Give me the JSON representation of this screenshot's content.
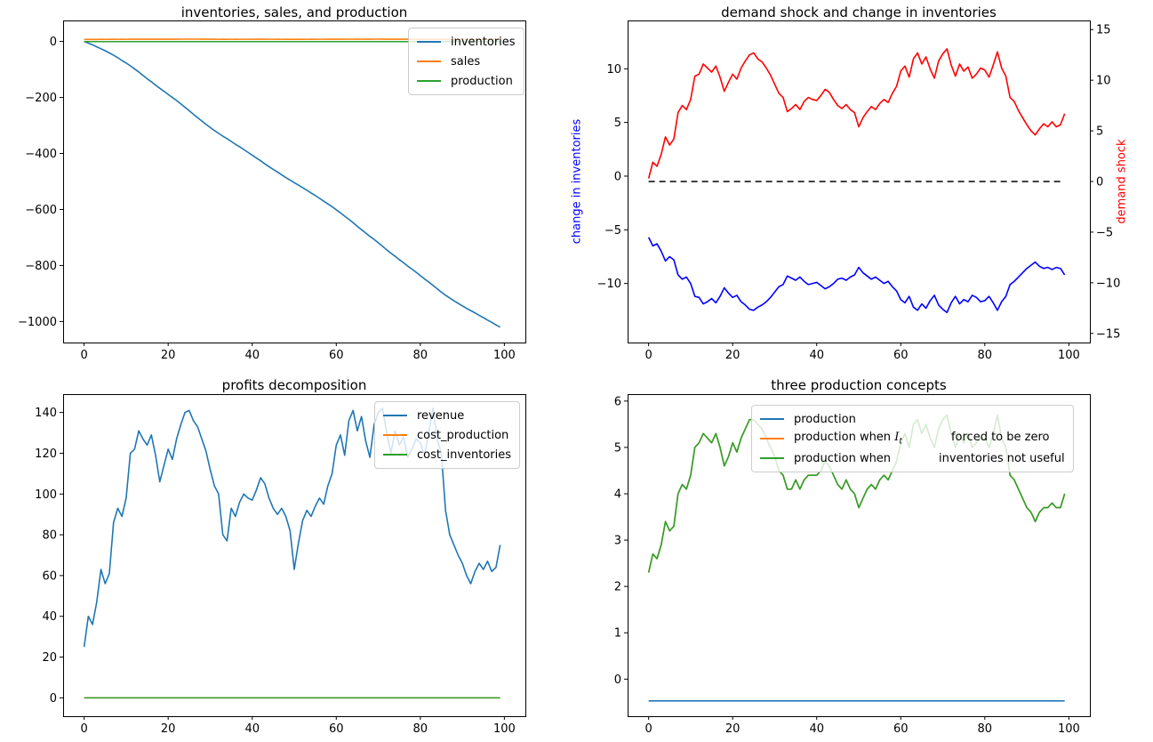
{
  "figure": {
    "background": "#ffffff"
  },
  "colors": {
    "mpl_blue": "#1f77b4",
    "mpl_orange": "#ff7f0e",
    "mpl_green": "#2ca02c",
    "pure_red": "#ff0000",
    "pure_blue": "#0000ff",
    "black": "#000000"
  },
  "chart_data": [
    {
      "id": "inventories_sales_production",
      "type": "line",
      "title": "inventories, sales, and production",
      "x_start": 0,
      "n_points": 100,
      "xlim": [
        -5,
        105
      ],
      "ylim": [
        -1075,
        75
      ],
      "grid": false,
      "xticks": {
        "values": [
          0,
          20,
          40,
          60,
          80,
          100
        ],
        "labels": [
          "0",
          "20",
          "40",
          "60",
          "80",
          "100"
        ]
      },
      "yticks": {
        "values": [
          0,
          -200,
          -400,
          -600,
          -800,
          -1000
        ],
        "labels": [
          "0",
          "−200",
          "−400",
          "−600",
          "−800",
          "−1000"
        ]
      },
      "legend": {
        "position": "upper right",
        "entries": [
          {
            "label": "inventories",
            "color": "#1f77b4"
          },
          {
            "label": "sales",
            "color": "#ff7f0e"
          },
          {
            "label": "production",
            "color": "#2ca02c"
          }
        ]
      },
      "series": [
        {
          "name": "inventories",
          "color": "#1f77b4",
          "values": [
            0,
            -6,
            -12,
            -19,
            -26,
            -33,
            -41,
            -49,
            -58,
            -68,
            -77,
            -87,
            -98,
            -109,
            -121,
            -133,
            -144,
            -156,
            -167,
            -178,
            -189,
            -200,
            -211,
            -223,
            -235,
            -247,
            -260,
            -272,
            -284,
            -296,
            -307,
            -318,
            -328,
            -338,
            -347,
            -357,
            -367,
            -376,
            -386,
            -396,
            -406,
            -416,
            -426,
            -437,
            -447,
            -457,
            -466,
            -476,
            -486,
            -495,
            -504,
            -513,
            -522,
            -531,
            -541,
            -550,
            -560,
            -570,
            -580,
            -590,
            -601,
            -612,
            -624,
            -635,
            -647,
            -660,
            -672,
            -684,
            -696,
            -707,
            -719,
            -731,
            -744,
            -756,
            -767,
            -779,
            -790,
            -802,
            -813,
            -824,
            -836,
            -848,
            -859,
            -871,
            -883,
            -895,
            -906,
            -916,
            -926,
            -935,
            -944,
            -953,
            -961,
            -969,
            -978,
            -986,
            -995,
            -1003,
            -1012,
            -1020
          ]
        },
        {
          "name": "sales",
          "color": "#ff7f0e",
          "values": [
            7.2,
            7.4,
            7.3,
            7.4,
            7.6,
            7.5,
            7.6,
            7.8,
            7.9,
            7.8,
            7.9,
            8.1,
            8.2,
            8.2,
            8.2,
            8.2,
            8.2,
            8.1,
            8.0,
            8.1,
            8.2,
            8.1,
            8.2,
            8.3,
            8.3,
            8.3,
            8.3,
            8.3,
            8.2,
            8.1,
            8.1,
            8.0,
            7.9,
            7.8,
            7.8,
            7.9,
            7.8,
            7.9,
            7.9,
            7.9,
            7.9,
            8.0,
            8.0,
            8.0,
            7.9,
            7.9,
            7.8,
            7.9,
            7.8,
            7.8,
            7.7,
            7.8,
            7.8,
            7.9,
            7.8,
            7.9,
            7.9,
            7.9,
            8.0,
            8.0,
            8.2,
            8.2,
            8.1,
            8.3,
            8.3,
            8.2,
            8.3,
            8.2,
            8.1,
            8.3,
            8.3,
            8.4,
            8.2,
            8.1,
            8.2,
            8.2,
            8.2,
            8.1,
            8.2,
            8.2,
            8.2,
            8.1,
            8.2,
            8.4,
            8.2,
            8.1,
            7.9,
            7.9,
            7.8,
            7.8,
            7.7,
            7.7,
            7.6,
            7.7,
            7.7,
            7.7,
            7.7,
            7.7,
            7.7,
            7.8
          ]
        },
        {
          "name": "production",
          "color": "#2ca02c",
          "constant": -0.47
        }
      ]
    },
    {
      "id": "demand_shock_and_change_in_inventories",
      "type": "line",
      "title": "demand shock and change in inventories",
      "x_start": 0,
      "n_points": 100,
      "xlim": [
        -5,
        105
      ],
      "ylim_left": [
        -15.5,
        14.5
      ],
      "ylim_right": [
        -15.9,
        15.9
      ],
      "grid": false,
      "ylabel_left": {
        "text": "change in inventories",
        "color": "#0000ff"
      },
      "ylabel_right": {
        "text": "demand shock",
        "color": "#ff0000"
      },
      "xticks": {
        "values": [
          0,
          20,
          40,
          60,
          80,
          100
        ],
        "labels": [
          "0",
          "20",
          "40",
          "60",
          "80",
          "100"
        ]
      },
      "yticks_left": {
        "values": [
          10,
          5,
          0,
          -5,
          -10
        ],
        "labels": [
          "10",
          "5",
          "0",
          "−5",
          "−10"
        ]
      },
      "yticks_right": {
        "values": [
          15,
          10,
          5,
          0,
          -5,
          -10,
          -15
        ],
        "labels": [
          "15",
          "10",
          "5",
          "0",
          "−5",
          "−10",
          "−15"
        ]
      },
      "legend": null,
      "series": [
        {
          "name": "zero line",
          "color": "#000000",
          "axis": "right",
          "dash": "7 5",
          "constant": 0
        },
        {
          "name": "demand shock",
          "color": "#ff0000",
          "axis": "right",
          "values": [
            0.3,
            1.9,
            1.5,
            2.7,
            4.4,
            3.6,
            4.2,
            6.8,
            7.5,
            7.1,
            8.1,
            10.4,
            10.6,
            11.6,
            11.2,
            10.8,
            11.4,
            10.3,
            8.9,
            9.8,
            10.6,
            10.1,
            11.2,
            11.9,
            12.5,
            12.7,
            12.1,
            11.8,
            11.2,
            10.5,
            9.6,
            8.7,
            8.3,
            6.9,
            7.2,
            7.6,
            7.1,
            7.9,
            8.3,
            8.1,
            8.0,
            8.5,
            9.1,
            8.8,
            8.1,
            7.5,
            7.2,
            7.6,
            7.1,
            6.8,
            5.4,
            6.3,
            6.9,
            7.4,
            7.1,
            7.7,
            8.1,
            7.8,
            8.7,
            9.4,
            10.9,
            11.4,
            10.3,
            12.1,
            12.7,
            11.6,
            12.3,
            11.1,
            10.2,
            11.9,
            12.6,
            13.1,
            11.5,
            10.4,
            11.6,
            10.9,
            11.3,
            10.2,
            10.6,
            11.2,
            11.0,
            10.3,
            11.5,
            12.8,
            11.2,
            10.4,
            8.3,
            7.9,
            7.0,
            6.3,
            5.6,
            5.0,
            4.6,
            5.2,
            5.7,
            5.4,
            5.9,
            5.4,
            5.6,
            6.7
          ]
        },
        {
          "name": "change in inventories",
          "color": "#0000ff",
          "axis": "left",
          "values": [
            -5.7,
            -6.5,
            -6.3,
            -7.0,
            -7.9,
            -7.5,
            -7.8,
            -9.2,
            -9.6,
            -9.4,
            -10.0,
            -11.2,
            -11.3,
            -11.9,
            -11.7,
            -11.4,
            -11.8,
            -11.2,
            -10.4,
            -10.9,
            -11.3,
            -11.1,
            -11.7,
            -12.0,
            -12.4,
            -12.5,
            -12.2,
            -12.0,
            -11.7,
            -11.3,
            -10.8,
            -10.3,
            -10.1,
            -9.3,
            -9.5,
            -9.7,
            -9.4,
            -9.8,
            -10.1,
            -10.0,
            -9.9,
            -10.2,
            -10.5,
            -10.3,
            -10.0,
            -9.6,
            -9.5,
            -9.7,
            -9.4,
            -9.2,
            -8.5,
            -9.0,
            -9.3,
            -9.6,
            -9.4,
            -9.7,
            -10.0,
            -9.8,
            -10.3,
            -10.7,
            -11.5,
            -11.8,
            -11.2,
            -12.2,
            -12.5,
            -11.9,
            -12.3,
            -11.6,
            -11.1,
            -12.0,
            -12.4,
            -12.7,
            -11.8,
            -11.2,
            -11.9,
            -11.5,
            -11.7,
            -11.1,
            -11.3,
            -11.7,
            -11.6,
            -11.2,
            -11.8,
            -12.5,
            -11.7,
            -11.2,
            -10.1,
            -9.8,
            -9.4,
            -9.0,
            -8.6,
            -8.3,
            -8.0,
            -8.4,
            -8.6,
            -8.5,
            -8.7,
            -8.5,
            -8.6,
            -9.2
          ]
        }
      ]
    },
    {
      "id": "profits_decomposition",
      "type": "line",
      "title": "profits decomposition",
      "x_start": 0,
      "n_points": 100,
      "xlim": [
        -5,
        105
      ],
      "ylim": [
        -9,
        149
      ],
      "grid": false,
      "xticks": {
        "values": [
          0,
          20,
          40,
          60,
          80,
          100
        ],
        "labels": [
          "0",
          "20",
          "40",
          "60",
          "80",
          "100"
        ]
      },
      "yticks": {
        "values": [
          140,
          120,
          100,
          80,
          60,
          40,
          20,
          0
        ],
        "labels": [
          "140",
          "120",
          "100",
          "80",
          "60",
          "40",
          "20",
          "0"
        ]
      },
      "legend": {
        "position": "upper right",
        "entries": [
          {
            "label": "revenue",
            "color": "#1f77b4"
          },
          {
            "label": "cost_production",
            "color": "#ff7f0e"
          },
          {
            "label": "cost_inventories",
            "color": "#2ca02c"
          }
        ]
      },
      "series": [
        {
          "name": "revenue",
          "color": "#1f77b4",
          "values": [
            25,
            40,
            36,
            47,
            63,
            56,
            61,
            86,
            93,
            89,
            98,
            120,
            122,
            131,
            127,
            124,
            129,
            119,
            106,
            114,
            122,
            117,
            127,
            134,
            140,
            141,
            136,
            133,
            127,
            121,
            112,
            104,
            100,
            80,
            77,
            93,
            89,
            96,
            100,
            98,
            97,
            102,
            108,
            105,
            98,
            93,
            90,
            93,
            89,
            82,
            63,
            76,
            87,
            92,
            89,
            94,
            98,
            95,
            104,
            110,
            124,
            129,
            119,
            136,
            141,
            131,
            138,
            126,
            118,
            134,
            140,
            142,
            130,
            120,
            131,
            124,
            128,
            118,
            122,
            127,
            125,
            119,
            130,
            142,
            127,
            120,
            92,
            80,
            75,
            70,
            66,
            60,
            56,
            62,
            66,
            63,
            67,
            62,
            64,
            75
          ]
        },
        {
          "name": "cost_production",
          "color": "#ff7f0e",
          "constant": 0
        },
        {
          "name": "cost_inventories",
          "color": "#2ca02c",
          "constant": 0
        }
      ]
    },
    {
      "id": "three_production_concepts",
      "type": "line",
      "title": "three production concepts",
      "x_start": 0,
      "n_points": 100,
      "xlim": [
        -5,
        105
      ],
      "ylim": [
        -0.8,
        6.15
      ],
      "grid": false,
      "xticks": {
        "values": [
          0,
          20,
          40,
          60,
          80,
          100
        ],
        "labels": [
          "0",
          "20",
          "40",
          "60",
          "80",
          "100"
        ]
      },
      "yticks": {
        "values": [
          6,
          5,
          4,
          3,
          2,
          1,
          0
        ],
        "labels": [
          "6",
          "5",
          "4",
          "3",
          "2",
          "1",
          "0"
        ]
      },
      "legend": {
        "position": "upper center",
        "entries": [
          {
            "label": "production",
            "color": "#1f77b4"
          },
          {
            "color": "#ff7f0e",
            "parts": [
              {
                "text": "production when "
              },
              {
                "math": "I",
                "sub": "t"
              },
              {
                "gap": 55
              },
              {
                "text": "forced to be zero"
              }
            ]
          },
          {
            "color": "#2ca02c",
            "parts": [
              {
                "text": "production when"
              },
              {
                "gap": 54
              },
              {
                "text": "inventories not useful"
              }
            ]
          }
        ]
      },
      "series": [
        {
          "name": "production",
          "color": "#1f77b4",
          "constant": -0.47
        },
        {
          "name": "production when I_t forced to be zero",
          "color": "#ff7f0e",
          "same_as": 2
        },
        {
          "name": "production when inventories not useful",
          "color": "#2ca02c",
          "values": [
            2.3,
            2.7,
            2.6,
            2.9,
            3.4,
            3.2,
            3.3,
            4.0,
            4.2,
            4.1,
            4.4,
            5.0,
            5.1,
            5.3,
            5.2,
            5.1,
            5.3,
            5.0,
            4.6,
            4.8,
            5.1,
            4.9,
            5.2,
            5.4,
            5.6,
            5.6,
            5.5,
            5.4,
            5.2,
            5.0,
            4.8,
            4.5,
            4.4,
            4.1,
            4.1,
            4.3,
            4.1,
            4.3,
            4.4,
            4.4,
            4.4,
            4.5,
            4.7,
            4.6,
            4.4,
            4.2,
            4.1,
            4.3,
            4.1,
            4.0,
            3.7,
            3.9,
            4.1,
            4.2,
            4.1,
            4.3,
            4.4,
            4.3,
            4.5,
            4.7,
            5.1,
            5.3,
            5.0,
            5.5,
            5.6,
            5.3,
            5.5,
            5.2,
            5.0,
            5.4,
            5.6,
            5.7,
            5.3,
            5.0,
            5.3,
            5.1,
            5.3,
            5.0,
            5.1,
            5.2,
            5.2,
            5.0,
            5.3,
            5.7,
            5.2,
            5.0,
            4.4,
            4.3,
            4.1,
            3.9,
            3.7,
            3.6,
            3.4,
            3.6,
            3.7,
            3.7,
            3.8,
            3.7,
            3.7,
            4.0
          ]
        }
      ]
    }
  ]
}
